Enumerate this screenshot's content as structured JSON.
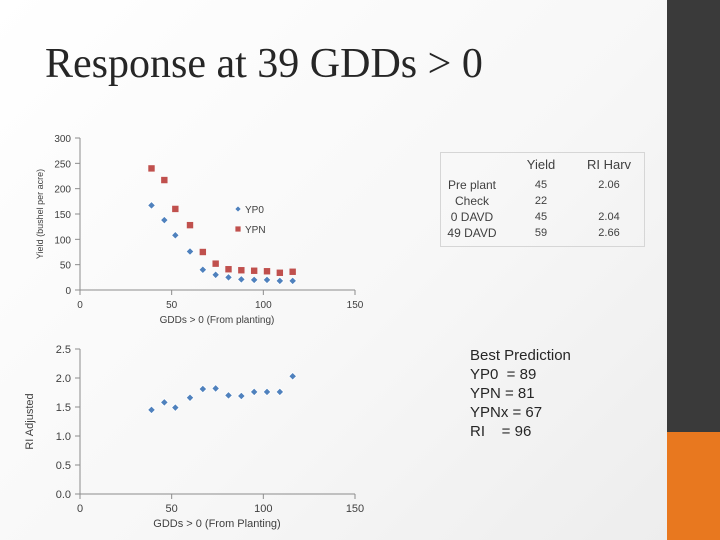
{
  "title": "Response at 39 GDDs > 0",
  "colors": {
    "yp0": "#4f81bd",
    "ypn": "#c0504d",
    "sidebar": "#3a3a3a",
    "accent": "#e8781f"
  },
  "chart_data": [
    {
      "type": "scatter",
      "title": "",
      "xlabel": "GDDs > 0 (From planting)",
      "ylabel": "Yield (bushel per acre)",
      "xlim": [
        0,
        150
      ],
      "ylim": [
        0,
        300
      ],
      "xticks": [
        0,
        50,
        100,
        150
      ],
      "yticks": [
        0,
        50,
        100,
        150,
        200,
        250,
        300
      ],
      "legend": "center-right",
      "grid": false,
      "series": [
        {
          "name": "YP0",
          "marker": "diamond",
          "x": [
            39,
            46,
            52,
            60,
            67,
            74,
            81,
            88,
            95,
            102,
            109,
            116
          ],
          "y": [
            167,
            138,
            108,
            76,
            40,
            30,
            25,
            21,
            20,
            20,
            18,
            18
          ]
        },
        {
          "name": "YPN",
          "marker": "square",
          "x": [
            39,
            46,
            52,
            60,
            67,
            74,
            81,
            88,
            95,
            102,
            109,
            116
          ],
          "y": [
            240,
            217,
            160,
            128,
            75,
            52,
            41,
            39,
            38,
            37,
            34,
            36
          ]
        }
      ]
    },
    {
      "type": "scatter",
      "title": "",
      "xlabel": "GDDs > 0 (From Planting)",
      "ylabel": "RI Adjusted",
      "xlim": [
        0,
        150
      ],
      "ylim": [
        0,
        2.5
      ],
      "xticks": [
        0,
        50,
        100,
        150
      ],
      "yticks": [
        0.0,
        0.5,
        1.0,
        1.5,
        2.0,
        2.5
      ],
      "ytick_labels": [
        "0.0",
        "0.5",
        "1.0",
        "1.5",
        "2.0",
        "2.5"
      ],
      "grid": false,
      "series": [
        {
          "marker": "diamond",
          "x": [
            39,
            46,
            52,
            60,
            67,
            74,
            81,
            88,
            95,
            102,
            109,
            116
          ],
          "y": [
            1.45,
            1.58,
            1.49,
            1.66,
            1.81,
            1.82,
            1.7,
            1.69,
            1.76,
            1.76,
            1.76,
            2.03
          ]
        }
      ]
    }
  ],
  "table": {
    "headers": [
      "",
      "Yield",
      "RI Harv"
    ],
    "rows": [
      {
        "label": "Pre plant",
        "yield": "45",
        "ri": "2.06"
      },
      {
        "label": "Check",
        "yield": "22",
        "ri": ""
      },
      {
        "label": "0 DAVD",
        "yield": "45",
        "ri": "2.04"
      },
      {
        "label": "49 DAVD",
        "yield": "59",
        "ri": "2.66"
      }
    ]
  },
  "best_prediction": {
    "heading": "Best Prediction",
    "lines": [
      "YP0  = 89",
      "YPN = 81",
      "YPNx = 67",
      "RI    = 96"
    ]
  }
}
